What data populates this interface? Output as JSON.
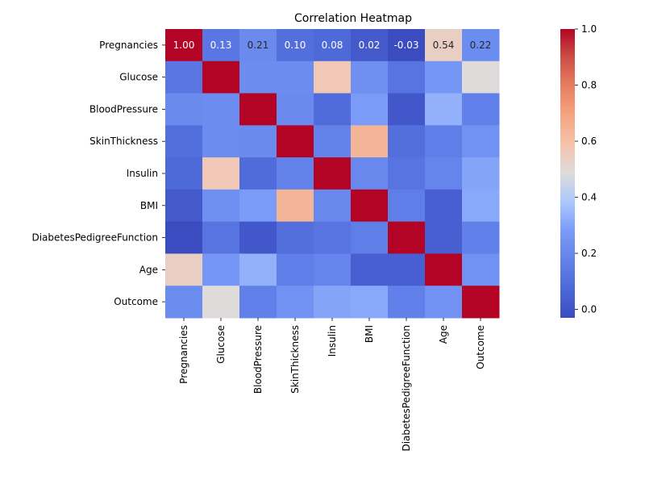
{
  "chart_data": {
    "type": "heatmap",
    "title": "Correlation Heatmap",
    "xlabel": "",
    "ylabel": "",
    "colormap": "coolwarm",
    "vmin": -0.03,
    "vmax": 1.0,
    "colorbar_ticks": [
      "0.0",
      "0.2",
      "0.4",
      "0.6",
      "0.8",
      "1.0"
    ],
    "rows": [
      "Pregnancies",
      "Glucose",
      "BloodPressure",
      "SkinThickness",
      "Insulin",
      "BMI",
      "DiabetesPedigreeFunction",
      "Age",
      "Outcome"
    ],
    "cols": [
      "Pregnancies",
      "Glucose",
      "BloodPressure",
      "SkinThickness",
      "Insulin",
      "BMI",
      "DiabetesPedigreeFunction",
      "Age",
      "Outcome"
    ],
    "values": [
      [
        1.0,
        0.13,
        0.21,
        0.1,
        0.08,
        0.02,
        -0.03,
        0.54,
        0.22
      ],
      [
        0.13,
        1.0,
        0.22,
        0.22,
        0.57,
        0.23,
        0.12,
        0.26,
        0.49
      ],
      [
        0.21,
        0.22,
        1.0,
        0.21,
        0.09,
        0.28,
        0.01,
        0.33,
        0.17
      ],
      [
        0.1,
        0.22,
        0.21,
        1.0,
        0.18,
        0.64,
        0.1,
        0.16,
        0.24
      ],
      [
        0.08,
        0.57,
        0.09,
        0.18,
        1.0,
        0.2,
        0.12,
        0.19,
        0.3
      ],
      [
        0.02,
        0.23,
        0.28,
        0.64,
        0.2,
        1.0,
        0.16,
        0.04,
        0.31
      ],
      [
        -0.03,
        0.12,
        0.01,
        0.1,
        0.12,
        0.16,
        1.0,
        0.04,
        0.17
      ],
      [
        0.54,
        0.26,
        0.33,
        0.16,
        0.19,
        0.04,
        0.04,
        1.0,
        0.24
      ],
      [
        0.22,
        0.49,
        0.17,
        0.24,
        0.3,
        0.31,
        0.17,
        0.24,
        1.0
      ]
    ],
    "annotations": [
      {
        "row": 0,
        "col": 0,
        "text": "1.00"
      },
      {
        "row": 0,
        "col": 1,
        "text": "0.13"
      },
      {
        "row": 0,
        "col": 2,
        "text": "0.21"
      },
      {
        "row": 0,
        "col": 3,
        "text": "0.10"
      },
      {
        "row": 0,
        "col": 4,
        "text": "0.08"
      },
      {
        "row": 0,
        "col": 5,
        "text": "0.02"
      },
      {
        "row": 0,
        "col": 6,
        "text": "-0.03"
      },
      {
        "row": 0,
        "col": 7,
        "text": "0.54"
      },
      {
        "row": 0,
        "col": 8,
        "text": "0.22"
      }
    ]
  }
}
